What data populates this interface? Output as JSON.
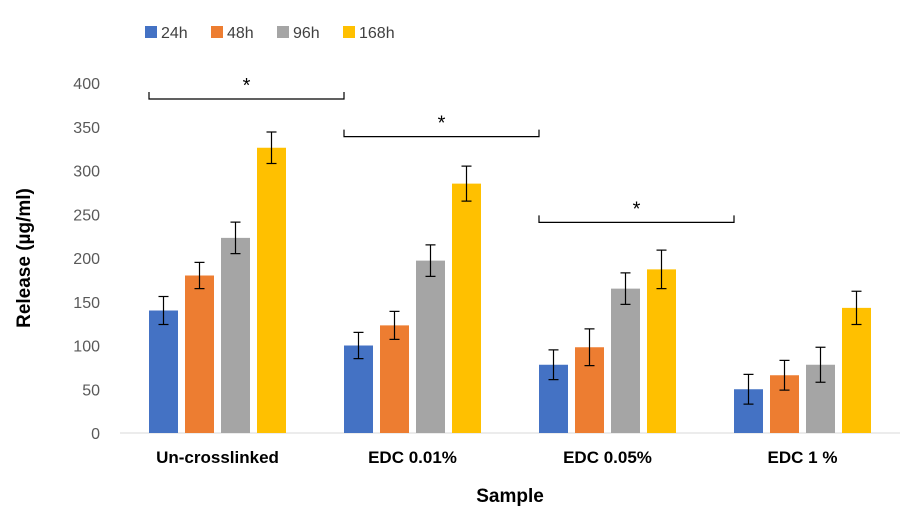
{
  "chart_data": {
    "type": "bar",
    "xlabel": "Sample",
    "ylabel": "Release (µg/ml)",
    "ylim": [
      0,
      400
    ],
    "yticks": [
      0,
      50,
      100,
      150,
      200,
      250,
      300,
      350,
      400
    ],
    "categories": [
      "Un-crosslinked",
      "EDC 0.01%",
      "EDC 0.05%",
      "EDC 1 %"
    ],
    "series": [
      {
        "name": "24h",
        "color": "#4472C4",
        "values": [
          140,
          100,
          78,
          50
        ],
        "errors": [
          16,
          15,
          17,
          17
        ]
      },
      {
        "name": "48h",
        "color": "#ED7D31",
        "values": [
          180,
          123,
          98,
          66
        ],
        "errors": [
          15,
          16,
          21,
          17
        ]
      },
      {
        "name": "96h",
        "color": "#A5A5A5",
        "values": [
          223,
          197,
          165,
          78
        ],
        "errors": [
          18,
          18,
          18,
          20
        ]
      },
      {
        "name": "168h",
        "color": "#FFC000",
        "values": [
          326,
          285,
          187,
          143
        ],
        "errors": [
          18,
          20,
          22,
          19
        ]
      }
    ],
    "legend_position": "top-left",
    "grid": false,
    "significance": [
      {
        "from": 0,
        "to": 1,
        "label": "*",
        "level": 400
      },
      {
        "from": 1,
        "to": 2,
        "label": "*",
        "level": 357
      },
      {
        "from": 2,
        "to": 3,
        "label": "*",
        "level": 259
      }
    ]
  }
}
